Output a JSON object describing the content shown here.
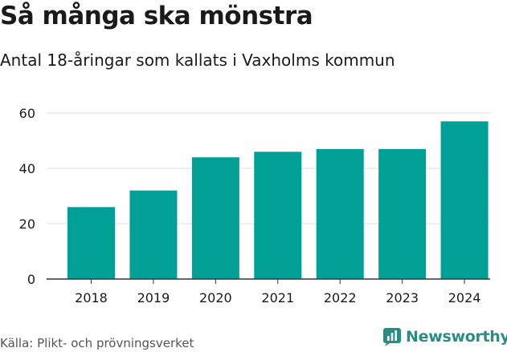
{
  "title": "Så många ska mönstra",
  "subtitle": "Antal 18-åringar som kallats i Vaxholms kommun",
  "source": "Källa: Plikt- och prövningsverket",
  "brand": {
    "name": "Newsworthy",
    "logo_icon": "bar-chart-logo-icon"
  },
  "colors": {
    "bar": "#00a096",
    "grid": "#dddddd",
    "axis": "#333333",
    "brand": "#2a8c86"
  },
  "chart_data": {
    "type": "bar",
    "categories": [
      "2018",
      "2019",
      "2020",
      "2021",
      "2022",
      "2023",
      "2024"
    ],
    "values": [
      26,
      32,
      44,
      46,
      47,
      47,
      57
    ],
    "title": "Så många ska mönstra",
    "subtitle": "Antal 18-åringar som kallats i Vaxholms kommun",
    "xlabel": "",
    "ylabel": "",
    "ylim": [
      0,
      60
    ],
    "yticks": [
      0,
      20,
      40,
      60
    ],
    "grid": true,
    "legend": "none"
  }
}
